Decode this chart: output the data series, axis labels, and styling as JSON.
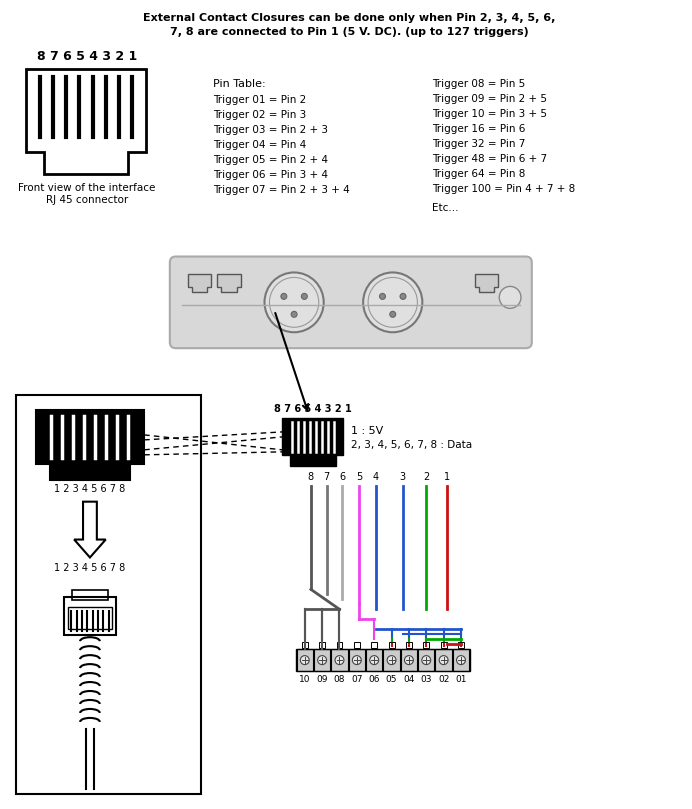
{
  "title_line1": "External Contact Closures can be done only when Pin 2, 3, 4, 5, 6,",
  "title_line2": "7, 8 are connected to Pin 1 (5 V. DC). (up to 127 triggers)",
  "pin_table_title": "Pin Table:",
  "pin_table_left": [
    "Trigger 01 = Pin 2",
    "Trigger 02 = Pin 3",
    "Trigger 03 = Pin 2 + 3",
    "Trigger 04 = Pin 4",
    "Trigger 05 = Pin 2 + 4",
    "Trigger 06 = Pin 3 + 4",
    "Trigger 07 = Pin 2 + 3 + 4"
  ],
  "pin_table_right": [
    "Trigger 08 = Pin 5",
    "Trigger 09 = Pin 2 + 5",
    "Trigger 10 = Pin 3 + 5",
    "Trigger 16 = Pin 6",
    "Trigger 32 = Pin 7",
    "Trigger 48 = Pin 6 + 7",
    "Trigger 64 = Pin 8",
    "Trigger 100 = Pin 4 + 7 + 8"
  ],
  "etc_text": "Etc...",
  "label_5v": "1 : 5V",
  "label_data": "2, 3, 4, 5, 6, 7, 8 : Data",
  "screw_terminal_labels": [
    "10",
    "09",
    "08",
    "07",
    "06",
    "05",
    "04",
    "03",
    "02",
    "01"
  ],
  "bg_color": "#ffffff"
}
